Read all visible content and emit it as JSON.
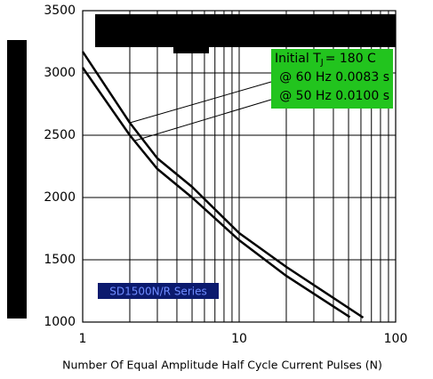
{
  "chart_data": {
    "type": "line",
    "xlabel": "Number Of Equal Amplitude Half Cycle Current Pulses (N)",
    "xscale": "log",
    "xlim": [
      1,
      100
    ],
    "xticks": [
      1,
      10,
      100
    ],
    "x_minor_ticks": [
      2,
      3,
      4,
      5,
      6,
      7,
      8,
      9,
      20,
      30,
      40,
      50,
      60,
      70,
      80,
      90
    ],
    "ylim": [
      1000,
      3500
    ],
    "yticks": [
      1000,
      1500,
      2000,
      2500,
      3000,
      3500
    ],
    "grid": true,
    "annotation": {
      "prefix": "Initial T",
      "sub": "J",
      "suffix": "= 180  C"
    },
    "series_label": "SD1500N/R Series",
    "series": [
      {
        "name": "@ 60 Hz 0.0083 s",
        "color": "#000000",
        "x": [
          1,
          2,
          3,
          5,
          10,
          20,
          62
        ],
        "values": [
          3171,
          2600,
          2314,
          2086,
          1714,
          1443,
          1036
        ]
      },
      {
        "name": "@ 50 Hz 0.0100 s",
        "color": "#000000",
        "x": [
          1,
          2,
          3,
          5,
          10,
          20,
          51
        ],
        "values": [
          3043,
          2500,
          2229,
          2000,
          1657,
          1371,
          1040
        ]
      }
    ]
  }
}
